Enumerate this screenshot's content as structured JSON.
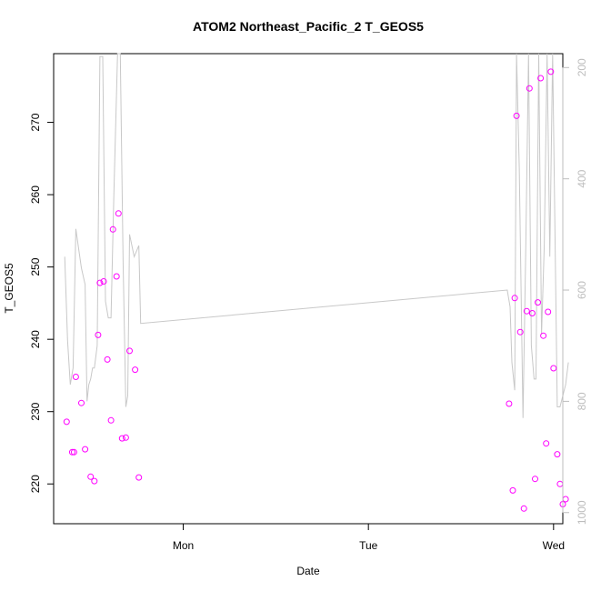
{
  "chart_data": {
    "type": "scatter",
    "title": "ATOM2 Northeast_Pacific_2 T_GEOS5",
    "xlabel": "Date",
    "ylabel": "T_GEOS5",
    "x_ticks": [
      {
        "label": "Mon",
        "day": 1.0
      },
      {
        "label": "Tue",
        "day": 2.0
      },
      {
        "label": "Wed",
        "day": 3.0
      }
    ],
    "xlim_days": [
      0.3,
      3.05
    ],
    "ylim": [
      214.5,
      279.5
    ],
    "y_ticks": [
      220,
      230,
      240,
      250,
      260,
      270
    ],
    "y2_label": "",
    "y2_ticks": [
      200,
      400,
      600,
      800,
      1000
    ],
    "y2lim": [
      1020,
      175
    ],
    "series": [
      {
        "kind": "points",
        "color": "#ff00ff",
        "points": [
          [
            0.37,
            228.6
          ],
          [
            0.4,
            224.4
          ],
          [
            0.41,
            224.4
          ],
          [
            0.42,
            234.8
          ],
          [
            0.45,
            231.2
          ],
          [
            0.47,
            224.8
          ],
          [
            0.5,
            221.0
          ],
          [
            0.52,
            220.4
          ],
          [
            0.54,
            240.6
          ],
          [
            0.55,
            247.8
          ],
          [
            0.57,
            248.0
          ],
          [
            0.59,
            237.2
          ],
          [
            0.61,
            228.8
          ],
          [
            0.62,
            255.2
          ],
          [
            0.64,
            248.7
          ],
          [
            0.65,
            257.4
          ],
          [
            0.67,
            226.3
          ],
          [
            0.69,
            226.4
          ],
          [
            0.71,
            238.4
          ],
          [
            0.74,
            235.8
          ],
          [
            0.76,
            220.9
          ],
          [
            2.76,
            231.1
          ],
          [
            2.78,
            219.1
          ],
          [
            2.79,
            245.7
          ],
          [
            2.8,
            270.9
          ],
          [
            2.82,
            241.0
          ],
          [
            2.84,
            216.6
          ],
          [
            2.855,
            243.9
          ],
          [
            2.87,
            274.7
          ],
          [
            2.885,
            243.6
          ],
          [
            2.9,
            220.7
          ],
          [
            2.915,
            245.1
          ],
          [
            2.93,
            276.1
          ],
          [
            2.945,
            240.5
          ],
          [
            2.96,
            225.6
          ],
          [
            2.97,
            243.8
          ],
          [
            2.985,
            277.0
          ],
          [
            3.0,
            236.0
          ],
          [
            3.02,
            224.1
          ],
          [
            3.035,
            220.0
          ],
          [
            3.05,
            217.2
          ],
          [
            3.065,
            217.9
          ]
        ]
      },
      {
        "kind": "line",
        "color": "#c8c8c8",
        "axis": "right",
        "points": [
          [
            0.36,
            540
          ],
          [
            0.375,
            690
          ],
          [
            0.39,
            770
          ],
          [
            0.405,
            740
          ],
          [
            0.42,
            490
          ],
          [
            0.45,
            560
          ],
          [
            0.47,
            590
          ],
          [
            0.48,
            800
          ],
          [
            0.49,
            770
          ],
          [
            0.5,
            760
          ],
          [
            0.51,
            740
          ],
          [
            0.52,
            740
          ],
          [
            0.535,
            700
          ],
          [
            0.55,
            180
          ],
          [
            0.565,
            180
          ],
          [
            0.58,
            620
          ],
          [
            0.595,
            650
          ],
          [
            0.61,
            650
          ],
          [
            0.625,
            430
          ],
          [
            0.645,
            175
          ],
          [
            0.66,
            175
          ],
          [
            0.675,
            550
          ],
          [
            0.69,
            810
          ],
          [
            0.7,
            790
          ],
          [
            0.71,
            500
          ],
          [
            0.735,
            540
          ],
          [
            0.76,
            520
          ],
          [
            0.77,
            660
          ],
          [
            2.75,
            600
          ],
          [
            2.765,
            630
          ],
          [
            2.775,
            730
          ],
          [
            2.79,
            780
          ],
          [
            2.8,
            175
          ],
          [
            2.815,
            380
          ],
          [
            2.835,
            830
          ],
          [
            2.85,
            520
          ],
          [
            2.865,
            175
          ],
          [
            2.88,
            700
          ],
          [
            2.895,
            760
          ],
          [
            2.905,
            760
          ],
          [
            2.92,
            175
          ],
          [
            2.935,
            680
          ],
          [
            2.95,
            520
          ],
          [
            2.965,
            175
          ],
          [
            2.98,
            540
          ],
          [
            2.995,
            175
          ],
          [
            3.02,
            810
          ],
          [
            3.035,
            810
          ],
          [
            3.05,
            790
          ],
          [
            3.065,
            770
          ],
          [
            3.08,
            730
          ]
        ]
      }
    ],
    "grid": false
  }
}
